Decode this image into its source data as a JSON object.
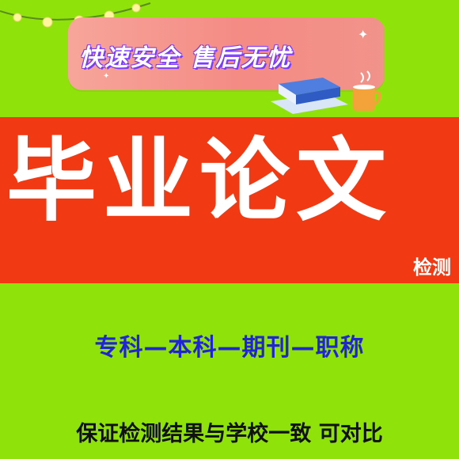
{
  "promo": {
    "slogan": "快速安全  售后无忧"
  },
  "banner": {
    "title": "毕业论文",
    "subtitle": "检测"
  },
  "levels_line": "专科—本科—期刊—职称",
  "guarantee_line": "保证检测结果与学校一致  可对比",
  "colors": {
    "background": "#8fe30a",
    "banner": "#f13a13",
    "pill": "#f48b84",
    "levels_text": "#1f24d6"
  },
  "icons": [
    "light-bunting-icon",
    "books-icon",
    "coffee-mug-icon",
    "sparkle-icon"
  ]
}
